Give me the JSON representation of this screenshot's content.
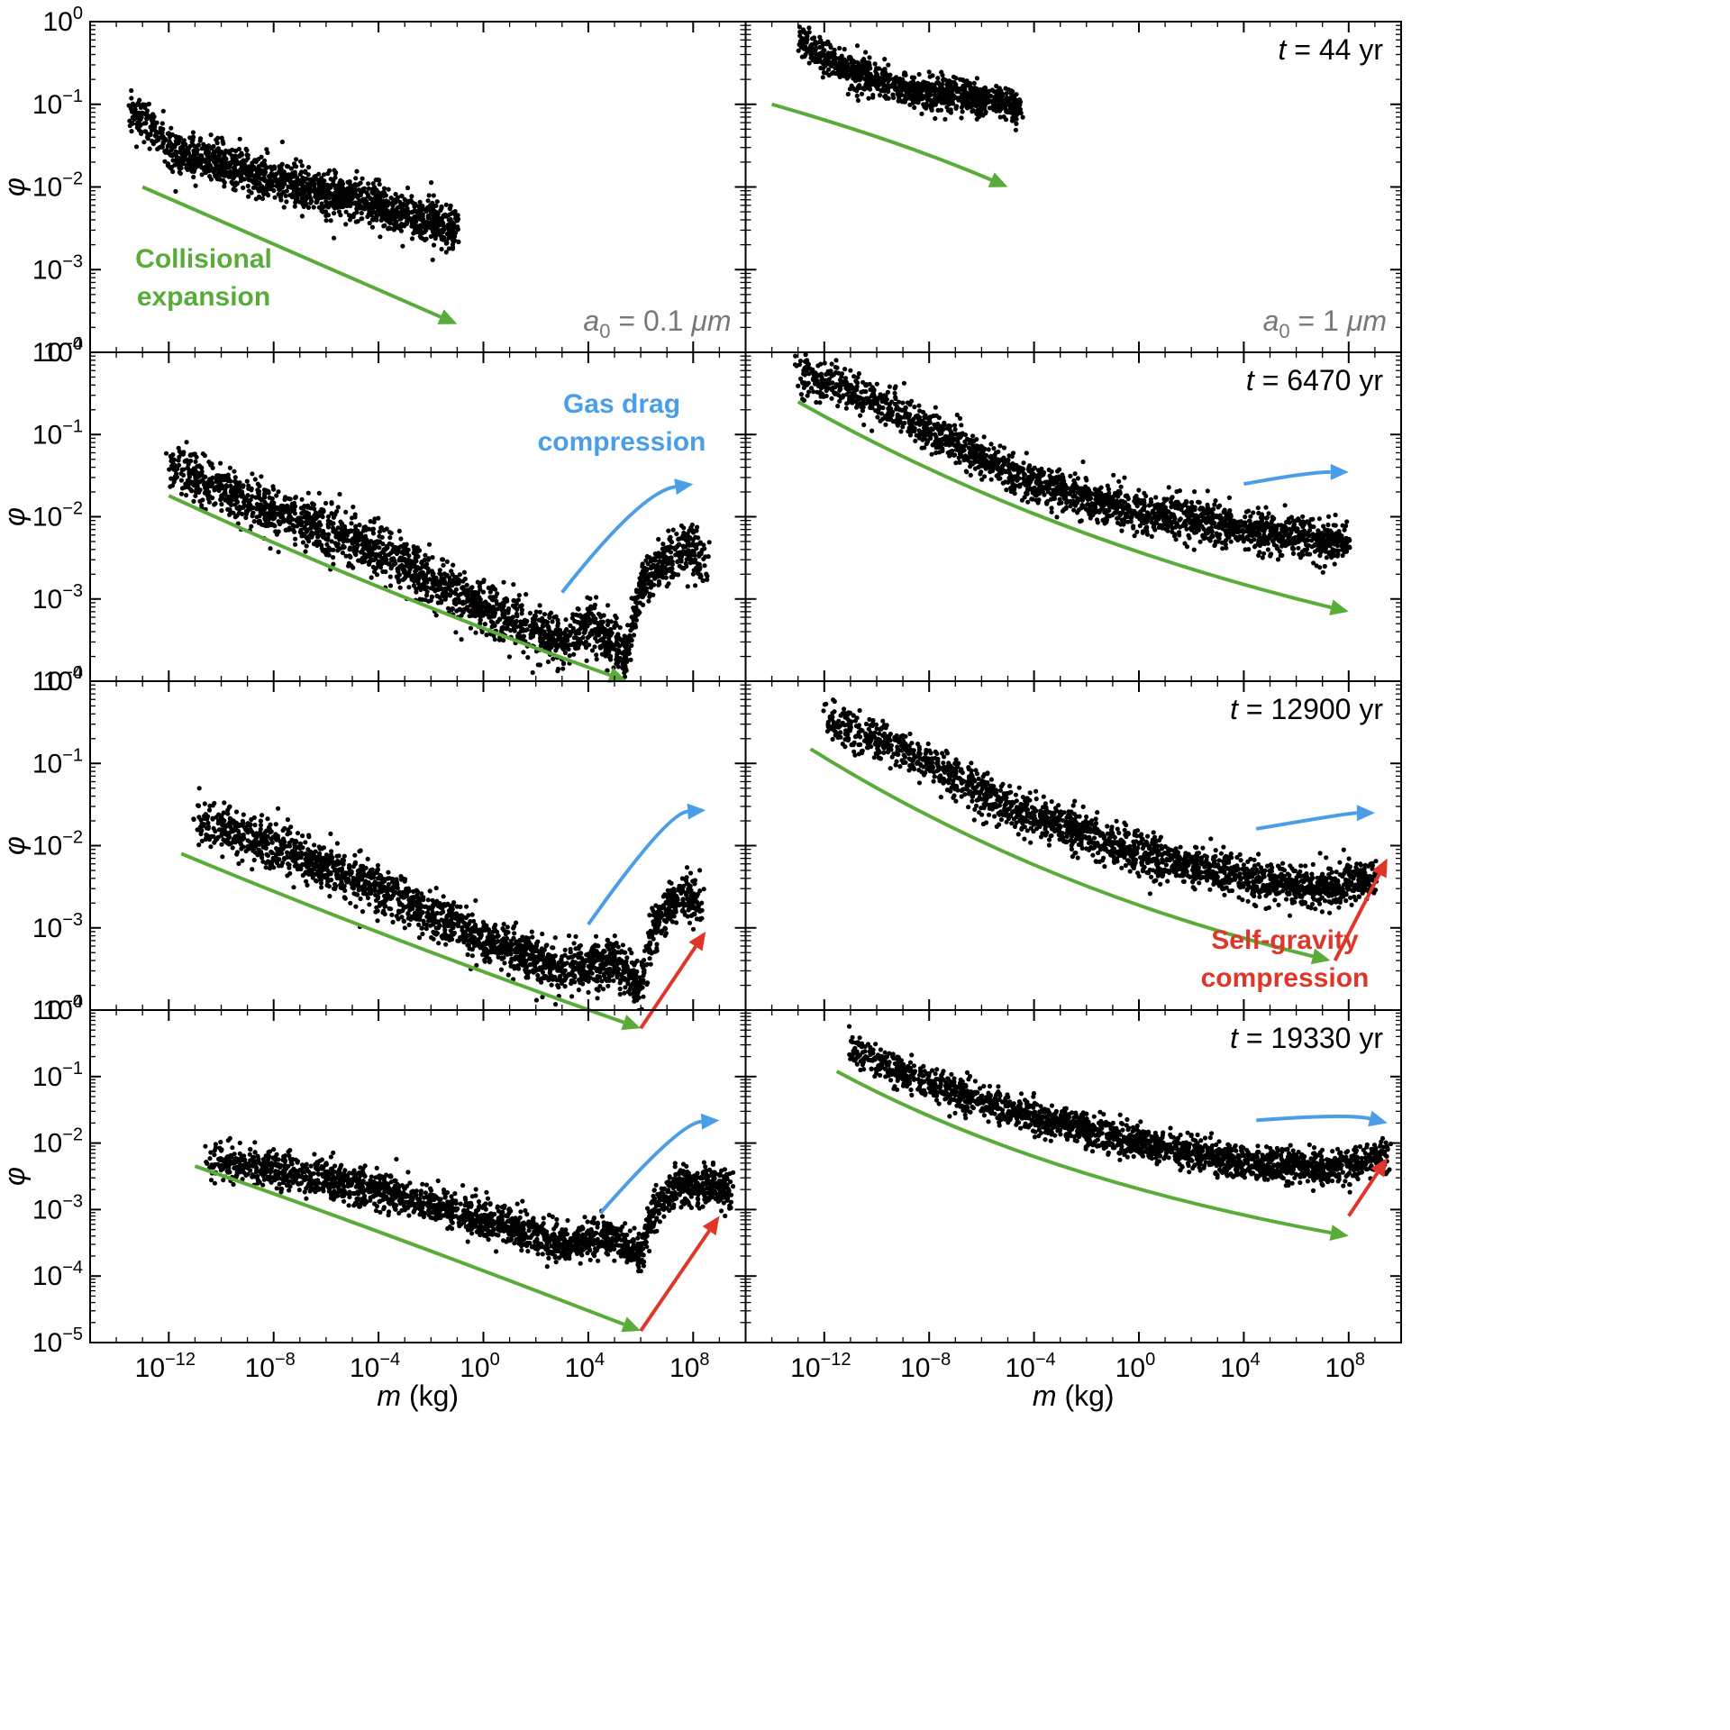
{
  "colors": {
    "collisional": "#5aac3a",
    "gas_drag": "#4a9ee8",
    "self_gravity": "#e0362a",
    "points": "#000000",
    "a0_text": "#777777"
  },
  "chart_data": {
    "type": "scatter",
    "xlabel": "m (kg)",
    "x_var": "m",
    "x_unit": " (kg)",
    "ylabel": "φ",
    "xlim": [
      1e-15,
      10000000000.0
    ],
    "ylim_top": [
      0.0001,
      1.0
    ],
    "ylim_bottom": [
      1e-05,
      1.0
    ],
    "x_ticks": [
      {
        "base": "10",
        "exp": "−12",
        "value": 1e-12
      },
      {
        "base": "10",
        "exp": "−8",
        "value": 1e-08
      },
      {
        "base": "10",
        "exp": "−4",
        "value": 0.0001
      },
      {
        "base": "10",
        "exp": "0",
        "value": 1
      },
      {
        "base": "10",
        "exp": "4",
        "value": 10000.0
      },
      {
        "base": "10",
        "exp": "8",
        "value": 100000000.0
      }
    ],
    "y_ticks": [
      {
        "base": "10",
        "exp": "0",
        "value": 1
      },
      {
        "base": "10",
        "exp": "−1",
        "value": 0.1
      },
      {
        "base": "10",
        "exp": "−2",
        "value": 0.01
      },
      {
        "base": "10",
        "exp": "−3",
        "value": 0.001
      },
      {
        "base": "10",
        "exp": "−4",
        "value": 0.0001
      }
    ],
    "y_tick_extra": {
      "base": "10",
      "exp": "−5",
      "value": 1e-05
    },
    "columns": [
      {
        "a0_var": "a",
        "a0_sub": "0",
        "a0_value": " = 0.1 ",
        "a0_unit": "μm"
      },
      {
        "a0_var": "a",
        "a0_sub": "0",
        "a0_value": " = 1 ",
        "a0_unit": "μm"
      }
    ],
    "rows": [
      {
        "t_var": "t",
        "t_value": " = 44 yr"
      },
      {
        "t_var": "t",
        "t_value": " = 6470 yr"
      },
      {
        "t_var": "t",
        "t_value": " = 12900 yr"
      },
      {
        "t_var": "t",
        "t_value": " = 19330 yr"
      }
    ],
    "annotations": {
      "collisional": [
        "Collisional",
        "expansion"
      ],
      "gas_drag": [
        "Gas drag",
        "compression"
      ],
      "self_gravity": [
        "Self-gravity",
        "compression"
      ]
    },
    "panels": [
      {
        "id": "r0c0",
        "row": 0,
        "col": 0,
        "distribution": [
          [
            3e-14,
            0.09
          ],
          [
            1e-12,
            0.03
          ],
          [
            1e-08,
            0.012
          ],
          [
            0.0001,
            0.006
          ],
          [
            0.1,
            0.003
          ]
        ],
        "spread_dex": 0.25,
        "n": 1600,
        "arrows": {
          "collisional": [
            [
              1e-13,
              0.01
            ],
            [
              1e-08,
              0.002
            ],
            [
              0.1,
              0.00022
            ]
          ]
        }
      },
      {
        "id": "r0c1",
        "row": 0,
        "col": 1,
        "distribution": [
          [
            1e-13,
            0.6
          ],
          [
            3e-12,
            0.3
          ],
          [
            1e-09,
            0.15
          ],
          [
            1e-06,
            0.12
          ],
          [
            3e-05,
            0.09
          ]
        ],
        "spread_dex": 0.2,
        "n": 1000,
        "arrows": {
          "collisional": [
            [
              1e-14,
              0.1
            ],
            [
              1e-09,
              0.035
            ],
            [
              1e-05,
              0.01
            ]
          ]
        }
      },
      {
        "id": "r1c0",
        "row": 1,
        "col": 0,
        "distribution": [
          [
            1e-12,
            0.04
          ],
          [
            1e-08,
            0.012
          ],
          [
            0.0001,
            0.004
          ],
          [
            1,
            0.0008
          ],
          [
            1000,
            0.0003
          ],
          [
            10000,
            0.0005
          ],
          [
            300000,
            0.0002
          ],
          [
            1000000.0,
            0.0015
          ],
          [
            10000000.0,
            0.003
          ],
          [
            100000000.0,
            0.004
          ],
          [
            300000000.0,
            0.003
          ]
        ],
        "spread_dex": 0.3,
        "n": 2200,
        "arrows": {
          "collisional": [
            [
              1e-12,
              0.018
            ],
            [
              0.0001,
              0.0012
            ],
            [
              300000.0,
              0.0001
            ]
          ],
          "gas_drag": [
            [
              1000,
              0.0012
            ],
            [
              1000000.0,
              0.02
            ],
            [
              100000000.0,
              0.025
            ]
          ]
        }
      },
      {
        "id": "r1c1",
        "row": 1,
        "col": 1,
        "distribution": [
          [
            1e-13,
            0.6
          ],
          [
            1e-10,
            0.25
          ],
          [
            1e-07,
            0.08
          ],
          [
            0.0001,
            0.025
          ],
          [
            1,
            0.012
          ],
          [
            10000,
            0.007
          ],
          [
            10000000.0,
            0.005
          ],
          [
            100000000.0,
            0.005
          ]
        ],
        "spread_dex": 0.25,
        "n": 2000,
        "arrows": {
          "collisional": [
            [
              1e-13,
              0.25
            ],
            [
              0.0001,
              0.006
            ],
            [
              100000000.0,
              0.0007
            ]
          ],
          "gas_drag": [
            [
              10000,
              0.025
            ],
            [
              3000000.0,
              0.035
            ],
            [
              100000000.0,
              0.035
            ]
          ]
        }
      },
      {
        "id": "r2c0",
        "row": 2,
        "col": 0,
        "distribution": [
          [
            1e-11,
            0.02
          ],
          [
            1e-08,
            0.01
          ],
          [
            0.0001,
            0.003
          ],
          [
            1,
            0.0007
          ],
          [
            1000,
            0.0003
          ],
          [
            100000,
            0.0004
          ],
          [
            1000000.0,
            0.0002
          ],
          [
            3000000.0,
            0.001
          ],
          [
            30000000.0,
            0.0025
          ],
          [
            200000000.0,
            0.002
          ]
        ],
        "spread_dex": 0.28,
        "n": 2100,
        "arrows": {
          "collisional": [
            [
              3e-12,
              0.008
            ],
            [
              0.0001,
              0.0008
            ],
            [
              1000000.0,
              6e-05
            ]
          ],
          "gas_drag": [
            [
              10000,
              0.0011
            ],
            [
              10000000.0,
              0.025
            ],
            [
              300000000.0,
              0.027
            ]
          ],
          "self_gravity": [
            [
              1000000.0,
              6e-05
            ],
            [
              300000000.0,
              0.0009
            ]
          ]
        }
      },
      {
        "id": "r2c1",
        "row": 2,
        "col": 1,
        "distribution": [
          [
            1e-12,
            0.35
          ],
          [
            1e-09,
            0.15
          ],
          [
            1e-05,
            0.03
          ],
          [
            1,
            0.008
          ],
          [
            10000,
            0.004
          ],
          [
            10000000.0,
            0.003
          ],
          [
            1000000000.0,
            0.004
          ]
        ],
        "spread_dex": 0.25,
        "n": 2000,
        "arrows": {
          "collisional": [
            [
              3e-13,
              0.15
            ],
            [
              0.0001,
              0.003
            ],
            [
              20000000.0,
              0.0004
            ]
          ],
          "gas_drag": [
            [
              30000,
              0.016
            ],
            [
              100000000.0,
              0.025
            ],
            [
              1000000000.0,
              0.025
            ]
          ],
          "self_gravity": [
            [
              30000000.0,
              0.0004
            ],
            [
              3000000000.0,
              0.007
            ]
          ]
        }
      },
      {
        "id": "r3c0",
        "row": 3,
        "col": 0,
        "distribution": [
          [
            3e-11,
            0.006
          ],
          [
            1e-08,
            0.004
          ],
          [
            0.0001,
            0.002
          ],
          [
            1,
            0.0007
          ],
          [
            1000,
            0.0003
          ],
          [
            100000,
            0.0004
          ],
          [
            1000000.0,
            0.0002
          ],
          [
            3000000.0,
            0.001
          ],
          [
            30000000.0,
            0.0025
          ],
          [
            3000000000.0,
            0.002
          ]
        ],
        "spread_dex": 0.28,
        "n": 2100,
        "arrows": {
          "collisional": [
            [
              1e-11,
              0.0045
            ],
            [
              0.0001,
              0.0005
            ],
            [
              1000000.0,
              1.5e-05
            ]
          ],
          "gas_drag": [
            [
              30000,
              0.0009
            ],
            [
              30000000.0,
              0.02
            ],
            [
              1000000000.0,
              0.022
            ]
          ],
          "self_gravity": [
            [
              1000000.0,
              1.5e-05
            ],
            [
              1000000000.0,
              0.0008
            ]
          ]
        }
      },
      {
        "id": "r3c1",
        "row": 3,
        "col": 1,
        "distribution": [
          [
            1e-11,
            0.25
          ],
          [
            1e-08,
            0.08
          ],
          [
            1e-05,
            0.03
          ],
          [
            1,
            0.01
          ],
          [
            10000,
            0.005
          ],
          [
            10000000.0,
            0.004
          ],
          [
            3000000000.0,
            0.006
          ]
        ],
        "spread_dex": 0.25,
        "n": 2000,
        "arrows": {
          "collisional": [
            [
              3e-12,
              0.12
            ],
            [
              0.0001,
              0.003
            ],
            [
              100000000.0,
              0.0004
            ]
          ],
          "gas_drag": [
            [
              30000,
              0.022
            ],
            [
              100000000.0,
              0.028
            ],
            [
              3000000000.0,
              0.02
            ]
          ],
          "self_gravity": [
            [
              100000000.0,
              0.0008
            ],
            [
              3000000000.0,
              0.006
            ]
          ]
        }
      }
    ]
  }
}
